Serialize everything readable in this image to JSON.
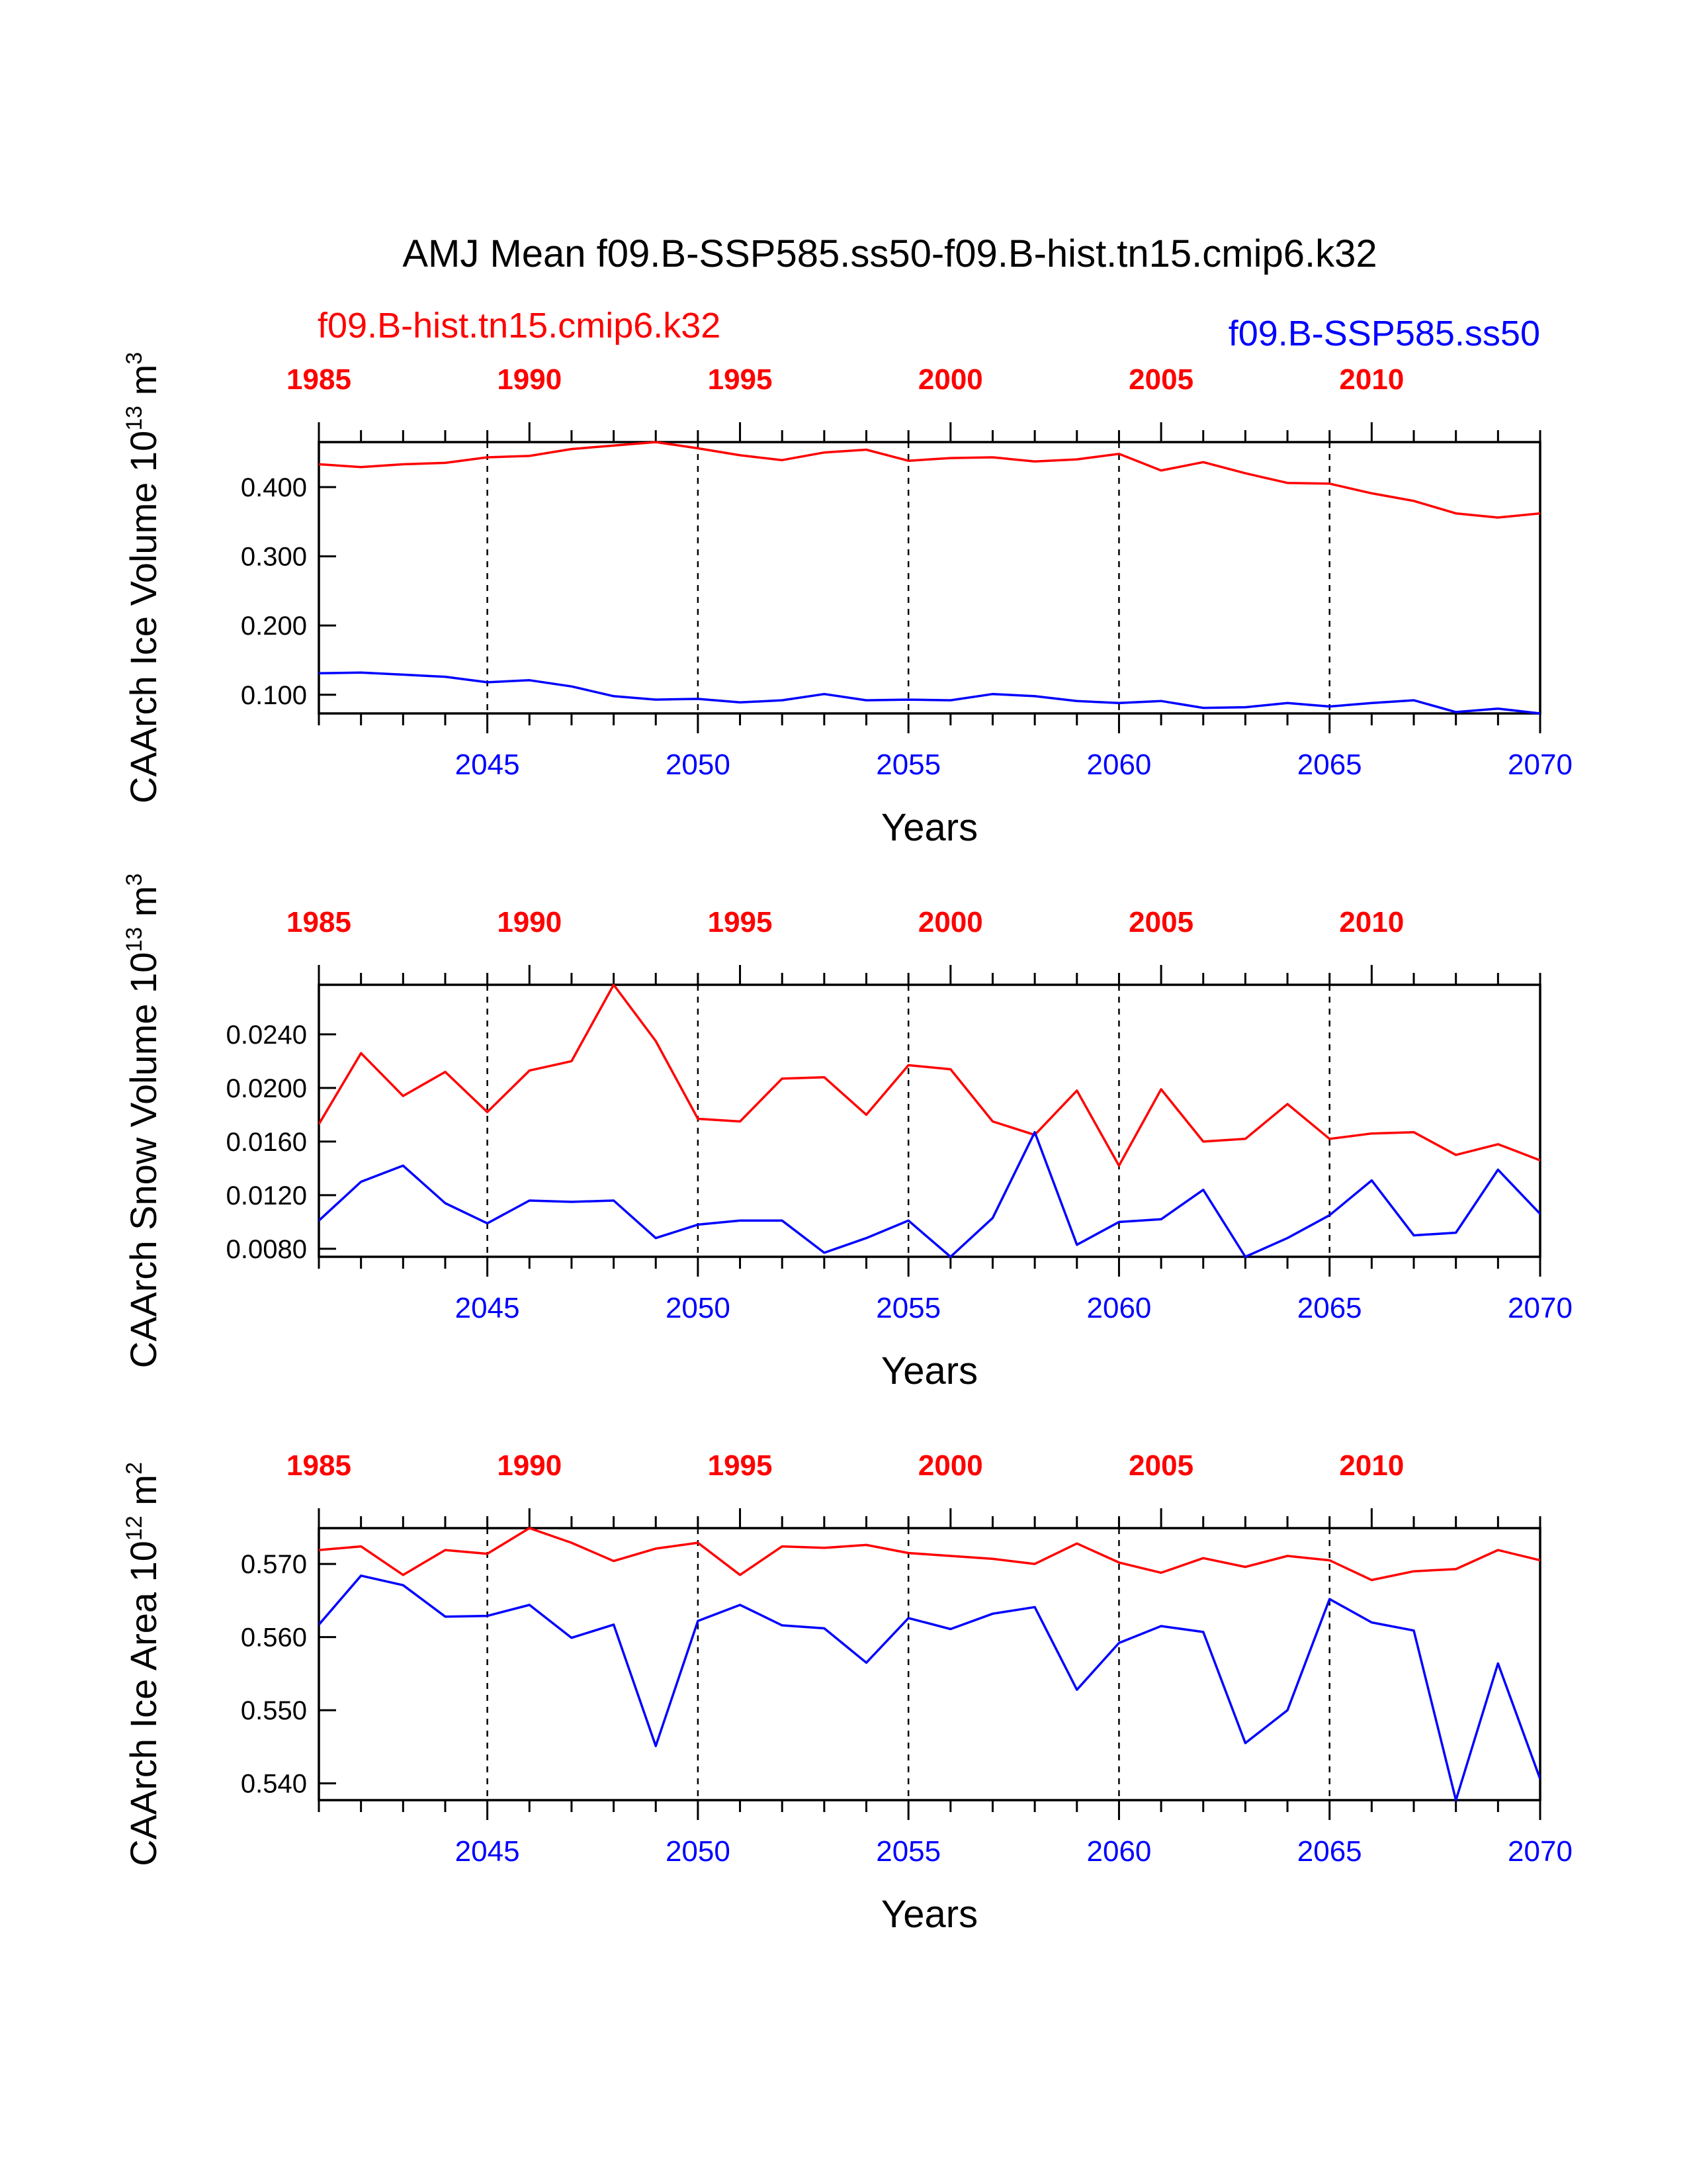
{
  "title": "AMJ Mean f09.B-SSP585.ss50-f09.B-hist.tn15.cmip6.k32",
  "legend": {
    "hist": {
      "label": "f09.B-hist.tn15.cmip6.k32",
      "color": "#ff0000"
    },
    "ssp": {
      "label": "f09.B-SSP585.ss50",
      "color": "#0000ff"
    }
  },
  "chart_data": [
    {
      "type": "line",
      "xlabel": "Years",
      "ylabel": {
        "text": "CAArch Ice Volume 10",
        "exp": "13",
        "unit": " m",
        "unit_exp": "3"
      },
      "x_bottom": {
        "range": [
          2041,
          2070
        ],
        "ticks": [
          2045,
          2050,
          2055,
          2060,
          2065,
          2070
        ]
      },
      "x_top": {
        "range": [
          1985,
          2014
        ],
        "ticks": [
          1985,
          1990,
          1995,
          2000,
          2005,
          2010
        ]
      },
      "ylim": [
        0.073,
        0.465
      ],
      "yticks": [
        0.1,
        0.2,
        0.3,
        0.4
      ],
      "yticklabels": [
        "0.100",
        "0.200",
        "0.300",
        "0.400"
      ],
      "grid": "dashed vertical lines at x ticks",
      "series": [
        {
          "name": "f09.B-hist.tn15.cmip6.k32",
          "color": "#ff0000",
          "x_axis": "top",
          "x": [
            1985,
            1986,
            1987,
            1988,
            1989,
            1990,
            1991,
            1992,
            1993,
            1994,
            1995,
            1996,
            1997,
            1998,
            1999,
            2000,
            2001,
            2002,
            2003,
            2004,
            2005,
            2006,
            2007,
            2008,
            2009,
            2010,
            2011,
            2012,
            2013,
            2014
          ],
          "values": [
            0.433,
            0.429,
            0.433,
            0.435,
            0.443,
            0.445,
            0.455,
            0.46,
            0.465,
            0.456,
            0.446,
            0.439,
            0.45,
            0.454,
            0.438,
            0.442,
            0.443,
            0.437,
            0.44,
            0.448,
            0.424,
            0.436,
            0.42,
            0.406,
            0.405,
            0.391,
            0.38,
            0.362,
            0.356,
            0.362
          ]
        },
        {
          "name": "f09.B-SSP585.ss50",
          "color": "#0000ff",
          "x_axis": "bottom",
          "x": [
            2041,
            2042,
            2043,
            2044,
            2045,
            2046,
            2047,
            2048,
            2049,
            2050,
            2051,
            2052,
            2053,
            2054,
            2055,
            2056,
            2057,
            2058,
            2059,
            2060,
            2061,
            2062,
            2063,
            2064,
            2065,
            2066,
            2067,
            2068,
            2069,
            2070
          ],
          "values": [
            0.131,
            0.132,
            0.129,
            0.126,
            0.118,
            0.121,
            0.112,
            0.098,
            0.093,
            0.094,
            0.089,
            0.092,
            0.101,
            0.092,
            0.093,
            0.092,
            0.101,
            0.098,
            0.091,
            0.088,
            0.091,
            0.081,
            0.082,
            0.088,
            0.083,
            0.088,
            0.092,
            0.075,
            0.08,
            0.073
          ]
        }
      ]
    },
    {
      "type": "line",
      "xlabel": "Years",
      "ylabel": {
        "text": "CAArch Snow Volume 10",
        "exp": "13",
        "unit": " m",
        "unit_exp": "3"
      },
      "x_bottom": {
        "range": [
          2041,
          2070
        ],
        "ticks": [
          2045,
          2050,
          2055,
          2060,
          2065,
          2070
        ]
      },
      "x_top": {
        "range": [
          1985,
          2014
        ],
        "ticks": [
          1985,
          1990,
          1995,
          2000,
          2005,
          2010
        ]
      },
      "ylim": [
        0.0074,
        0.0277
      ],
      "yticks": [
        0.008,
        0.012,
        0.016,
        0.02,
        0.024
      ],
      "yticklabels": [
        "0.0080",
        "0.0120",
        "0.0160",
        "0.0200",
        "0.0240"
      ],
      "grid": "dashed vertical lines at x ticks",
      "series": [
        {
          "name": "f09.B-hist.tn15.cmip6.k32",
          "color": "#ff0000",
          "x_axis": "top",
          "x": [
            1985,
            1986,
            1987,
            1988,
            1989,
            1990,
            1991,
            1992,
            1993,
            1994,
            1995,
            1996,
            1997,
            1998,
            1999,
            2000,
            2001,
            2002,
            2003,
            2004,
            2005,
            2006,
            2007,
            2008,
            2009,
            2010,
            2011,
            2012,
            2013,
            2014
          ],
          "values": [
            0.0173,
            0.0226,
            0.0194,
            0.0212,
            0.0182,
            0.0213,
            0.022,
            0.0277,
            0.0235,
            0.0177,
            0.0175,
            0.0207,
            0.0208,
            0.018,
            0.0217,
            0.0214,
            0.0175,
            0.0165,
            0.0198,
            0.0142,
            0.0199,
            0.016,
            0.0162,
            0.0188,
            0.0162,
            0.0166,
            0.0167,
            0.015,
            0.0158,
            0.0146
          ]
        },
        {
          "name": "f09.B-SSP585.ss50",
          "color": "#0000ff",
          "x_axis": "bottom",
          "x": [
            2041,
            2042,
            2043,
            2044,
            2045,
            2046,
            2047,
            2048,
            2049,
            2050,
            2051,
            2052,
            2053,
            2054,
            2055,
            2056,
            2057,
            2058,
            2059,
            2060,
            2061,
            2062,
            2063,
            2064,
            2065,
            2066,
            2067,
            2068,
            2069,
            2070
          ],
          "values": [
            0.0101,
            0.013,
            0.0142,
            0.0114,
            0.0099,
            0.0116,
            0.0115,
            0.0116,
            0.0088,
            0.0098,
            0.0101,
            0.0101,
            0.0077,
            0.0088,
            0.0101,
            0.0074,
            0.0103,
            0.0167,
            0.0083,
            0.01,
            0.0102,
            0.0124,
            0.0074,
            0.0088,
            0.0105,
            0.0131,
            0.009,
            0.0092,
            0.0139,
            0.0106
          ]
        }
      ]
    },
    {
      "type": "line",
      "xlabel": "Years",
      "ylabel": {
        "text": "CAArch Ice Area 10",
        "exp": "12",
        "unit": " m",
        "unit_exp": "2"
      },
      "x_bottom": {
        "range": [
          2041,
          2070
        ],
        "ticks": [
          2045,
          2050,
          2055,
          2060,
          2065,
          2070
        ]
      },
      "x_top": {
        "range": [
          1985,
          2014
        ],
        "ticks": [
          1985,
          1990,
          1995,
          2000,
          2005,
          2010
        ]
      },
      "ylim": [
        0.5377,
        0.5749
      ],
      "yticks": [
        0.54,
        0.55,
        0.56,
        0.57
      ],
      "yticklabels": [
        "0.540",
        "0.550",
        "0.560",
        "0.570"
      ],
      "grid": "dashed vertical lines at x ticks",
      "series": [
        {
          "name": "f09.B-hist.tn15.cmip6.k32",
          "color": "#ff0000",
          "x_axis": "top",
          "x": [
            1985,
            1986,
            1987,
            1988,
            1989,
            1990,
            1991,
            1992,
            1993,
            1994,
            1995,
            1996,
            1997,
            1998,
            1999,
            2000,
            2001,
            2002,
            2003,
            2004,
            2005,
            2006,
            2007,
            2008,
            2009,
            2010,
            2011,
            2012,
            2013,
            2014
          ],
          "values": [
            0.5719,
            0.5724,
            0.5685,
            0.5719,
            0.5714,
            0.5749,
            0.5729,
            0.5704,
            0.5721,
            0.5729,
            0.5685,
            0.5724,
            0.5722,
            0.5726,
            0.5715,
            0.5711,
            0.5707,
            0.57,
            0.5728,
            0.5702,
            0.5688,
            0.5708,
            0.5696,
            0.5711,
            0.5705,
            0.5678,
            0.569,
            0.5693,
            0.5719,
            0.5705
          ]
        },
        {
          "name": "f09.B-SSP585.ss50",
          "color": "#0000ff",
          "x_axis": "bottom",
          "x": [
            2041,
            2042,
            2043,
            2044,
            2045,
            2046,
            2047,
            2048,
            2049,
            2050,
            2051,
            2052,
            2053,
            2054,
            2055,
            2056,
            2057,
            2058,
            2059,
            2060,
            2061,
            2062,
            2063,
            2064,
            2065,
            2066,
            2067,
            2068,
            2069,
            2070
          ],
          "values": [
            0.5617,
            0.5684,
            0.5671,
            0.5628,
            0.5629,
            0.5644,
            0.5599,
            0.5617,
            0.5451,
            0.5622,
            0.5644,
            0.5616,
            0.5612,
            0.5565,
            0.5626,
            0.5611,
            0.5632,
            0.5641,
            0.5528,
            0.5592,
            0.5615,
            0.5607,
            0.5455,
            0.55,
            0.5652,
            0.562,
            0.5609,
            0.5377,
            0.5564,
            0.5406
          ]
        }
      ]
    }
  ]
}
